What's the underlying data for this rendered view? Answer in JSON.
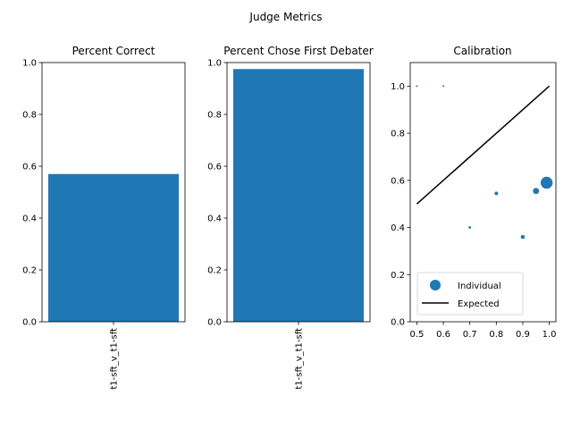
{
  "suptitle": "Judge Metrics",
  "chart_data": [
    {
      "type": "bar",
      "title": "Percent Correct",
      "categories": [
        "t1-sft_v_t1-sft"
      ],
      "values": [
        0.57
      ],
      "ylim": [
        0,
        1.0
      ],
      "yticks": [
        "0.0",
        "0.2",
        "0.4",
        "0.6",
        "0.8",
        "1.0"
      ],
      "color": "#1f77b4"
    },
    {
      "type": "bar",
      "title": "Percent Chose First Debater",
      "categories": [
        "t1-sft_v_t1-sft"
      ],
      "values": [
        0.975
      ],
      "ylim": [
        0,
        1.0
      ],
      "yticks": [
        "0.0",
        "0.2",
        "0.4",
        "0.6",
        "0.8",
        "1.0"
      ],
      "color": "#1f77b4"
    },
    {
      "type": "scatter",
      "title": "Calibration",
      "xlim": [
        0.475,
        1.025
      ],
      "ylim": [
        0,
        1.1
      ],
      "xticks": [
        "0.5",
        "0.6",
        "0.7",
        "0.8",
        "0.9",
        "1.0"
      ],
      "yticks": [
        "0.0",
        "0.2",
        "0.4",
        "0.6",
        "0.8",
        "1.0"
      ],
      "series": [
        {
          "name": "Individual",
          "points": [
            {
              "x": 0.5,
              "y": 1.0,
              "weight": 1
            },
            {
              "x": 0.6,
              "y": 1.0,
              "weight": 1
            },
            {
              "x": 0.7,
              "y": 0.4,
              "weight": 2
            },
            {
              "x": 0.8,
              "y": 0.545,
              "weight": 4
            },
            {
              "x": 0.9,
              "y": 0.36,
              "weight": 5
            },
            {
              "x": 0.95,
              "y": 0.555,
              "weight": 12
            },
            {
              "x": 0.99,
              "y": 0.59,
              "weight": 45
            }
          ],
          "color": "#1f77b4"
        },
        {
          "name": "Expected",
          "type": "line",
          "points": [
            {
              "x": 0.5,
              "y": 0.5
            },
            {
              "x": 1.0,
              "y": 1.0
            }
          ],
          "color": "#000000"
        }
      ],
      "legend": "lower-center"
    }
  ]
}
